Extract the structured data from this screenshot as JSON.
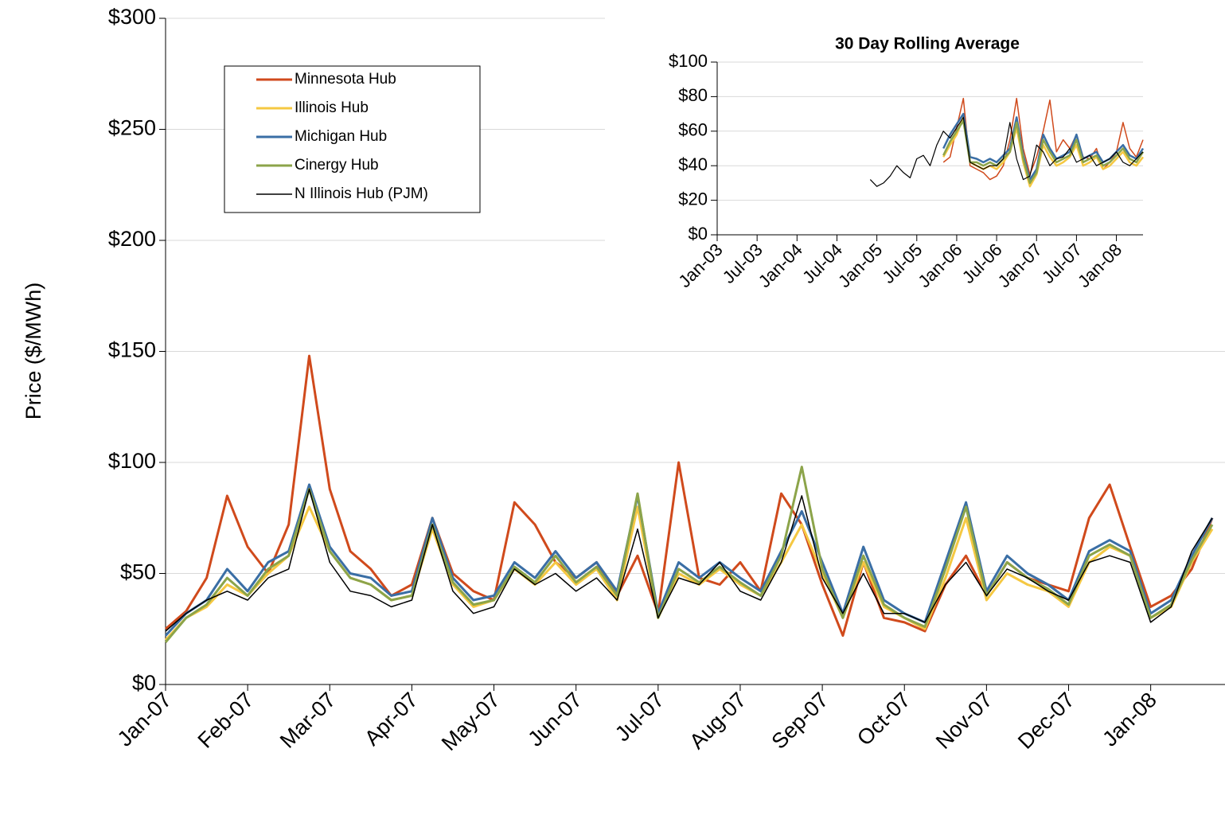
{
  "chart_data": [
    {
      "type": "line",
      "y_label": "Price ($/MWh)",
      "categories": [
        "Jan-07",
        null,
        null,
        null,
        "Feb-07",
        null,
        null,
        null,
        "Mar-07",
        null,
        null,
        null,
        "Apr-07",
        null,
        null,
        null,
        "May-07",
        null,
        null,
        null,
        "Jun-07",
        null,
        null,
        null,
        "Jul-07",
        null,
        null,
        null,
        "Aug-07",
        null,
        null,
        null,
        "Sep-07",
        null,
        null,
        null,
        "Oct-07",
        null,
        null,
        null,
        "Nov-07",
        null,
        null,
        null,
        "Dec-07",
        null,
        null,
        null,
        "Jan-08",
        null,
        null,
        null
      ],
      "ylim": [
        0,
        300
      ],
      "yticks": [
        {
          "value": 0,
          "label": "$0"
        },
        {
          "value": 50,
          "label": "$50"
        },
        {
          "value": 100,
          "label": "$100"
        },
        {
          "value": 150,
          "label": "$150"
        },
        {
          "value": 200,
          "label": "$200"
        },
        {
          "value": 250,
          "label": "$250"
        },
        {
          "value": 300,
          "label": "$300"
        }
      ],
      "grid": true,
      "legend": "upper-left",
      "series": [
        {
          "name": "Minnesota Hub",
          "color": "#d04a1c",
          "values": [
            25,
            33,
            48,
            85,
            62,
            50,
            72,
            148,
            88,
            60,
            52,
            40,
            45,
            75,
            50,
            42,
            38,
            82,
            72,
            55,
            48,
            55,
            40,
            58,
            32,
            100,
            48,
            45,
            55,
            42,
            86,
            72,
            45,
            22,
            55,
            30,
            28,
            24,
            45,
            58,
            40,
            55,
            48,
            45,
            42,
            75,
            90,
            62,
            35,
            40,
            52,
            75
          ]
        },
        {
          "name": "Illinois Hub",
          "color": "#f5c842",
          "values": [
            20,
            30,
            35,
            45,
            40,
            50,
            58,
            80,
            60,
            48,
            45,
            38,
            40,
            70,
            45,
            35,
            38,
            52,
            45,
            55,
            45,
            52,
            38,
            80,
            30,
            50,
            45,
            52,
            45,
            40,
            55,
            72,
            50,
            30,
            55,
            35,
            30,
            25,
            48,
            75,
            38,
            50,
            45,
            42,
            35,
            55,
            62,
            58,
            30,
            35,
            55,
            70
          ]
        },
        {
          "name": "Michigan Hub",
          "color": "#3a6ea5",
          "values": [
            22,
            32,
            38,
            52,
            42,
            55,
            60,
            90,
            62,
            50,
            48,
            40,
            42,
            75,
            48,
            38,
            40,
            55,
            48,
            60,
            48,
            55,
            42,
            85,
            32,
            55,
            48,
            55,
            48,
            42,
            60,
            78,
            55,
            32,
            62,
            38,
            32,
            28,
            55,
            82,
            42,
            58,
            50,
            45,
            38,
            60,
            65,
            60,
            32,
            38,
            58,
            75
          ]
        },
        {
          "name": "Cinergy Hub",
          "color": "#8ca44a",
          "values": [
            19,
            30,
            36,
            48,
            40,
            52,
            58,
            88,
            60,
            48,
            45,
            38,
            40,
            72,
            46,
            36,
            38,
            53,
            46,
            58,
            46,
            53,
            40,
            86,
            30,
            52,
            46,
            53,
            46,
            40,
            58,
            98,
            52,
            30,
            58,
            36,
            30,
            26,
            52,
            80,
            40,
            55,
            48,
            43,
            36,
            58,
            63,
            58,
            30,
            36,
            56,
            72
          ]
        },
        {
          "name": "N Illinois Hub (PJM)",
          "color": "#000000",
          "values": [
            24,
            32,
            38,
            42,
            38,
            48,
            52,
            88,
            55,
            42,
            40,
            35,
            38,
            72,
            42,
            32,
            35,
            52,
            45,
            50,
            42,
            48,
            38,
            70,
            30,
            48,
            45,
            55,
            42,
            38,
            55,
            85,
            48,
            32,
            50,
            32,
            32,
            28,
            45,
            55,
            40,
            52,
            48,
            42,
            38,
            55,
            58,
            55,
            28,
            35,
            60,
            75
          ]
        }
      ]
    },
    {
      "type": "line",
      "title": "30 Day Rolling Average",
      "categories": [
        "Jan-03",
        null,
        null,
        null,
        null,
        null,
        "Jul-03",
        null,
        null,
        null,
        null,
        null,
        "Jan-04",
        null,
        null,
        null,
        null,
        null,
        "Jul-04",
        null,
        null,
        null,
        null,
        null,
        "Jan-05",
        null,
        null,
        null,
        null,
        null,
        "Jul-05",
        null,
        null,
        null,
        null,
        null,
        "Jan-06",
        null,
        null,
        null,
        null,
        null,
        "Jul-06",
        null,
        null,
        null,
        null,
        null,
        "Jan-07",
        null,
        null,
        null,
        null,
        null,
        "Jul-07",
        null,
        null,
        null,
        null,
        null,
        "Jan-08",
        null,
        null,
        null,
        null
      ],
      "ylim": [
        0,
        100
      ],
      "yticks": [
        {
          "value": 0,
          "label": "$0"
        },
        {
          "value": 20,
          "label": "$20"
        },
        {
          "value": 40,
          "label": "$40"
        },
        {
          "value": 60,
          "label": "$60"
        },
        {
          "value": 80,
          "label": "$80"
        },
        {
          "value": 100,
          "label": "$100"
        }
      ],
      "grid": true,
      "series": [
        {
          "name": "Minnesota Hub",
          "color": "#d04a1c",
          "values": [
            null,
            null,
            null,
            null,
            null,
            null,
            null,
            null,
            null,
            null,
            null,
            null,
            null,
            null,
            null,
            null,
            null,
            null,
            null,
            null,
            null,
            null,
            null,
            null,
            null,
            null,
            null,
            null,
            null,
            null,
            null,
            null,
            null,
            null,
            42,
            45,
            62,
            79,
            40,
            38,
            36,
            32,
            34,
            40,
            55,
            79,
            50,
            35,
            45,
            60,
            78,
            48,
            55,
            50,
            58,
            45,
            44,
            50,
            38,
            42,
            48,
            65,
            50,
            45,
            55
          ]
        },
        {
          "name": "Illinois Hub",
          "color": "#f5c842",
          "values": [
            null,
            null,
            null,
            null,
            null,
            null,
            null,
            null,
            null,
            null,
            null,
            null,
            null,
            null,
            null,
            null,
            null,
            null,
            null,
            null,
            null,
            null,
            null,
            null,
            null,
            null,
            null,
            null,
            null,
            null,
            null,
            null,
            null,
            null,
            45,
            52,
            58,
            68,
            42,
            40,
            38,
            40,
            38,
            42,
            48,
            62,
            42,
            28,
            35,
            52,
            45,
            40,
            42,
            45,
            52,
            40,
            42,
            45,
            38,
            40,
            44,
            48,
            42,
            40,
            45
          ]
        },
        {
          "name": "Michigan Hub",
          "color": "#3a6ea5",
          "values": [
            null,
            null,
            null,
            null,
            null,
            null,
            null,
            null,
            null,
            null,
            null,
            null,
            null,
            null,
            null,
            null,
            null,
            null,
            null,
            null,
            null,
            null,
            null,
            null,
            null,
            null,
            null,
            null,
            null,
            null,
            null,
            null,
            null,
            null,
            50,
            58,
            64,
            70,
            45,
            44,
            42,
            44,
            42,
            46,
            50,
            68,
            46,
            32,
            38,
            58,
            50,
            44,
            46,
            48,
            58,
            44,
            46,
            48,
            42,
            44,
            48,
            52,
            46,
            44,
            50
          ]
        },
        {
          "name": "Cinergy Hub",
          "color": "#8ca44a",
          "values": [
            null,
            null,
            null,
            null,
            null,
            null,
            null,
            null,
            null,
            null,
            null,
            null,
            null,
            null,
            null,
            null,
            null,
            null,
            null,
            null,
            null,
            null,
            null,
            null,
            null,
            null,
            null,
            null,
            null,
            null,
            null,
            null,
            null,
            null,
            46,
            54,
            60,
            66,
            42,
            42,
            40,
            42,
            40,
            44,
            48,
            65,
            44,
            30,
            36,
            55,
            48,
            42,
            44,
            46,
            55,
            42,
            44,
            46,
            40,
            42,
            46,
            50,
            44,
            42,
            48
          ]
        },
        {
          "name": "N Illinois Hub (PJM)",
          "color": "#000000",
          "values": [
            null,
            null,
            null,
            null,
            null,
            null,
            null,
            null,
            null,
            null,
            null,
            null,
            null,
            null,
            null,
            null,
            null,
            null,
            null,
            null,
            null,
            null,
            null,
            32,
            28,
            30,
            34,
            40,
            36,
            33,
            44,
            46,
            40,
            52,
            60,
            56,
            62,
            68,
            42,
            40,
            38,
            40,
            40,
            44,
            65,
            44,
            32,
            34,
            52,
            48,
            40,
            44,
            45,
            50,
            42,
            44,
            46,
            40,
            42,
            44,
            48,
            42,
            40,
            44,
            48
          ]
        }
      ]
    }
  ]
}
